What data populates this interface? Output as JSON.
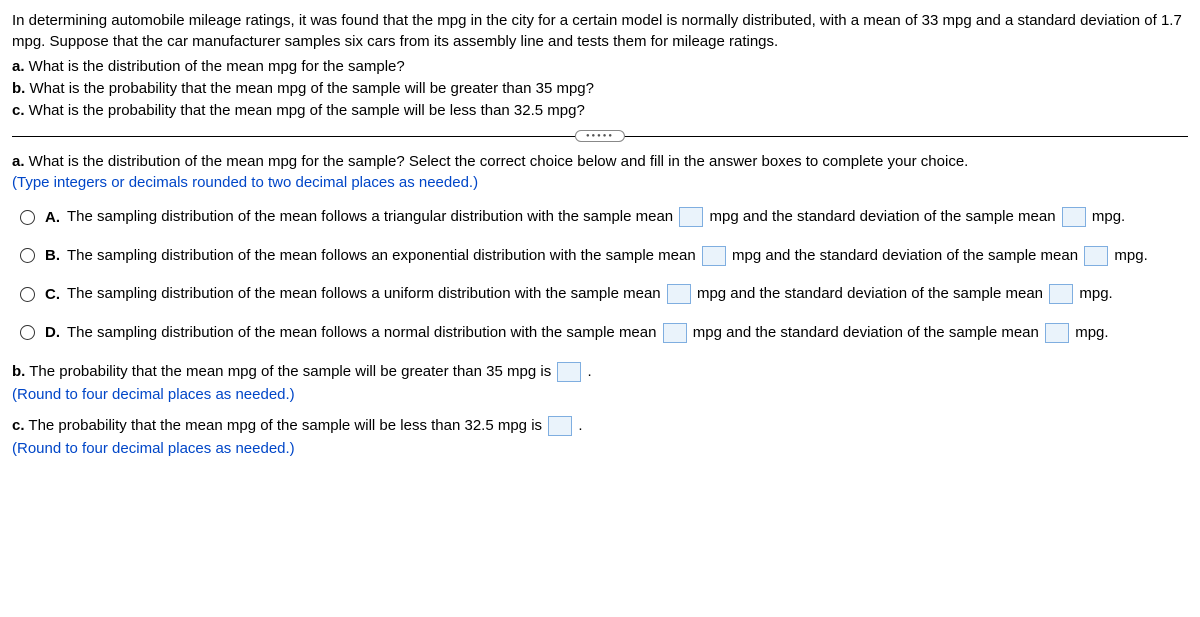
{
  "intro": "In determining automobile mileage ratings, it was found that the mpg in the city for a certain model is normally distributed, with a mean of 33 mpg and a standard deviation of 1.7 mpg. Suppose that the car manufacturer samples six cars from its assembly line and tests them for mileage ratings.",
  "parts": {
    "a_label": "a.",
    "a_text": " What is the distribution of the mean mpg for the sample?",
    "b_label": "b.",
    "b_text": " What is the probability that the mean mpg of the sample will be greater than 35 mpg?",
    "c_label": "c.",
    "c_text": " What is the probability that the mean mpg of the sample will be less than 32.5 mpg?"
  },
  "section_a": {
    "prompt_label": "a.",
    "prompt": " What is the distribution of the mean mpg for the sample? Select the correct choice below and fill in the answer boxes to complete your choice.",
    "note": "(Type integers or decimals rounded to two decimal places as needed.)"
  },
  "choices": {
    "A": {
      "label": "A.",
      "pre": "The sampling distribution of the mean follows a triangular distribution with the sample mean ",
      "mid": " mpg and the standard deviation of the sample mean ",
      "post": " mpg."
    },
    "B": {
      "label": "B.",
      "pre": "The sampling distribution of the mean follows an exponential distribution with the sample mean ",
      "mid": " mpg and the standard deviation of the sample mean ",
      "post": " mpg."
    },
    "C": {
      "label": "C.",
      "pre": "The sampling distribution of the mean follows a uniform distribution with the sample mean ",
      "mid": " mpg and the standard deviation of the sample mean ",
      "post": " mpg."
    },
    "D": {
      "label": "D.",
      "pre": "The sampling distribution of the mean follows a normal distribution with the sample mean ",
      "mid": " mpg and the standard deviation of the sample mean ",
      "post": " mpg."
    }
  },
  "section_b": {
    "label": "b.",
    "text_pre": " The probability that the mean mpg of the sample will be greater than 35 mpg is ",
    "text_post": " .",
    "note": "(Round to four decimal places as needed.)"
  },
  "section_c": {
    "label": "c.",
    "text_pre": " The probability that the mean mpg of the sample will be less than 32.5 mpg is ",
    "text_post": " .",
    "note": "(Round to four decimal places as needed.)"
  },
  "style": {
    "blue_color": "#0046c8",
    "input_border": "#7faee0",
    "input_bg": "#eaf3fb"
  }
}
